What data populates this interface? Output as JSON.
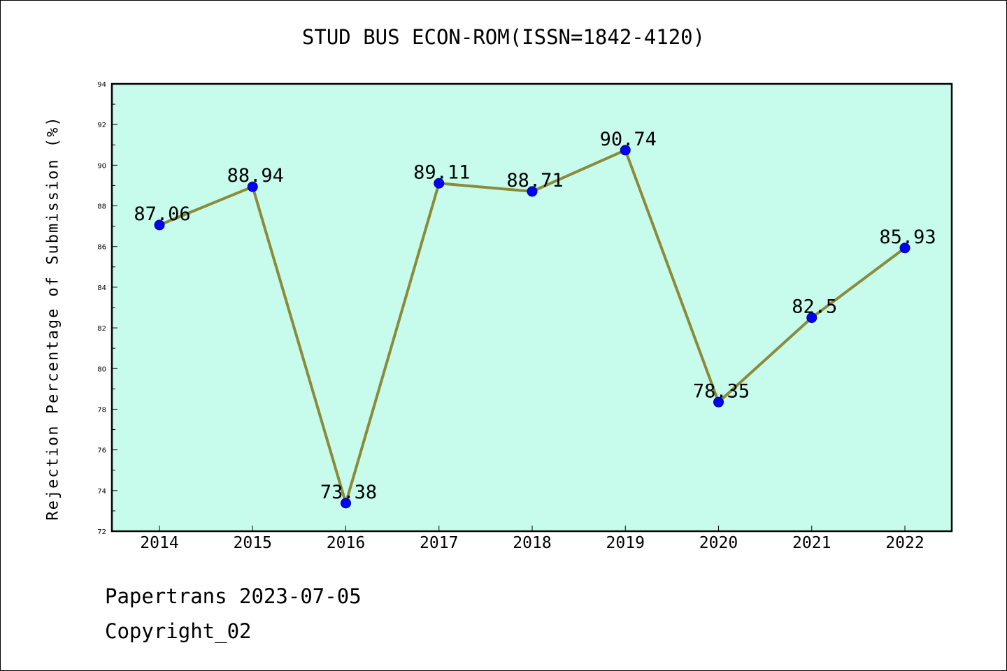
{
  "chart_data": {
    "type": "line",
    "title": "STUD BUS ECON-ROM(ISSN=1842-4120)",
    "xlabel": "",
    "ylabel": "Rejection Percentage of Submission (%)",
    "categories": [
      "2014",
      "2015",
      "2016",
      "2017",
      "2018",
      "2019",
      "2020",
      "2021",
      "2022"
    ],
    "series": [
      {
        "values": [
          87.06,
          88.94,
          73.38,
          89.11,
          88.71,
          90.74,
          78.35,
          82.5,
          85.93
        ]
      }
    ],
    "data_labels": [
      "87.06",
      "88.94",
      "73.38",
      "89.11",
      "88.71",
      "90.74",
      "78.35",
      "82.5",
      "85.93"
    ],
    "ylim": [
      72,
      94
    ],
    "yticks": [
      "72",
      "74",
      "76",
      "78",
      "80",
      "82",
      "84",
      "86",
      "88",
      "90",
      "92",
      "94"
    ],
    "grid": false,
    "legend": "none",
    "colors": {
      "plot_background": "#c7fcec",
      "line": "#8b8b3a",
      "marker": "#0000ff",
      "marker_edge": "#00008b"
    }
  },
  "footer": {
    "line1": "Papertrans 2023-07-05",
    "line2": "Copyright_02"
  }
}
